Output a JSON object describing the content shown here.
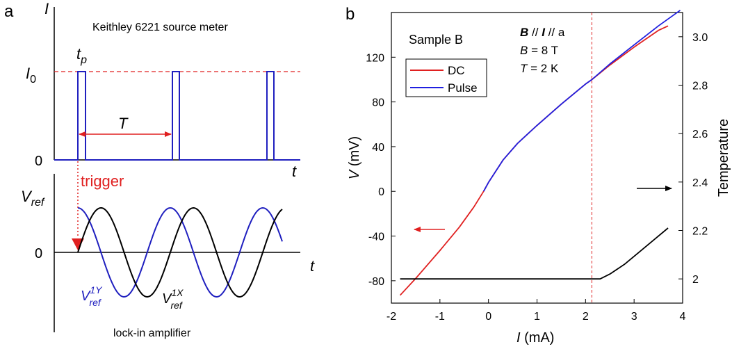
{
  "panel_a": {
    "label": "a",
    "top": {
      "title": "Keithley 6221 source meter",
      "y_axis_label": "I",
      "i0_label": "I",
      "i0_subscript": "0",
      "zero_label": "0",
      "x_axis_label": "t",
      "tp_label": "t",
      "tp_subscript": "p",
      "period_label": "T",
      "trigger_label": "trigger"
    },
    "bottom": {
      "y_axis_label": "V",
      "y_axis_subscript": "ref",
      "zero_label": "0",
      "x_axis_label": "t",
      "v1y_label": "V",
      "v1y_sup": "1Y",
      "v1y_sub": "ref",
      "v1x_label": "V",
      "v1x_sup": "1X",
      "v1x_sub": "ref",
      "caption": "lock-in amplifier"
    },
    "colors": {
      "pulse": "#1f1fbf",
      "sine_y": "#1f1fbf",
      "sine_x": "#000000",
      "trigger": "#e02020"
    }
  },
  "panel_b": {
    "label": "b",
    "sample_label": "Sample B",
    "annotation": {
      "line1_b": "B",
      "line1_sep1": " // ",
      "line1_i": "I",
      "line1_rest": " // a",
      "line2_var": "B",
      "line2_rest": " = 8 T",
      "line3_var": "T",
      "line3_rest": " = 2 K"
    },
    "legend": [
      {
        "name": "DC",
        "color": "#e02020"
      },
      {
        "name": "Pulse",
        "color": "#2020e0"
      }
    ]
  },
  "chart_data": {
    "type": "line",
    "xlabel_var": "I",
    "xlabel_unit": " (mA)",
    "ylabel_var": "V",
    "ylabel_unit": " (mV)",
    "y2label": "Temperature",
    "xlim": [
      -2,
      4
    ],
    "ylim": [
      -100,
      160
    ],
    "y2lim": [
      1.9,
      3.1
    ],
    "xticks": [
      "-2",
      "-1",
      "0",
      "1",
      "2",
      "3",
      "4"
    ],
    "yticks": [
      "-80",
      "-40",
      "0",
      "40",
      "80",
      "120"
    ],
    "y2ticks": [
      "2",
      "2.2",
      "2.4",
      "2.6",
      "2.8",
      "3.0"
    ],
    "vline_x": 2.13,
    "series": [
      {
        "name": "DC",
        "axis": "left",
        "color": "#e02020",
        "x": [
          -1.82,
          -1.5,
          -1.0,
          -0.6,
          -0.3,
          -0.1,
          0.0,
          0.3,
          0.6,
          1.0,
          1.5,
          2.0,
          2.13,
          2.5,
          3.0,
          3.5,
          3.7
        ],
        "y": [
          -93,
          -78,
          -53,
          -32,
          -14,
          0,
          8,
          28,
          43,
          59,
          78,
          96,
          100,
          113,
          129,
          144,
          148
        ]
      },
      {
        "name": "Pulse",
        "axis": "left",
        "color": "#2020e0",
        "x": [
          -0.1,
          0.0,
          0.3,
          0.6,
          1.0,
          1.5,
          2.0,
          2.13,
          2.5,
          3.0,
          3.5,
          3.95
        ],
        "y": [
          0,
          8,
          28,
          43,
          59,
          78,
          96,
          100,
          114,
          131,
          148,
          162
        ]
      },
      {
        "name": "",
        "axis": "right",
        "color": "#000000",
        "x": [
          -1.82,
          -1.0,
          0.0,
          1.0,
          2.0,
          2.3,
          2.5,
          2.8,
          3.1,
          3.4,
          3.7
        ],
        "y": [
          2.0,
          2.0,
          2.0,
          2.0,
          2.0,
          2.0,
          2.02,
          2.06,
          2.11,
          2.16,
          2.21
        ]
      }
    ]
  }
}
